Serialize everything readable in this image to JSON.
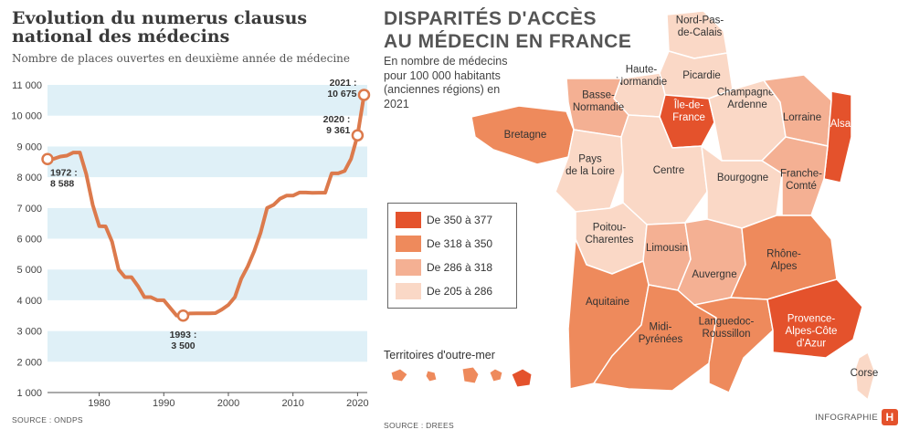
{
  "left": {
    "title": "Evolution du numerus clausus national des médecins",
    "subtitle": "Nombre de places ouvertes en deuxième année de médecine",
    "source": "SOURCE : ONDPS"
  },
  "chart_data": [
    {
      "type": "line",
      "title": "Evolution du numerus clausus national des médecins",
      "subtitle": "Nombre de places ouvertes en deuxième année de médecine",
      "xlabel": "",
      "ylabel": "",
      "xlim": [
        1972,
        2021
      ],
      "ylim": [
        1000,
        11000
      ],
      "x_ticks": [
        1980,
        1990,
        2000,
        2010,
        2020
      ],
      "y_ticks": [
        1000,
        2000,
        3000,
        4000,
        5000,
        6000,
        7000,
        8000,
        9000,
        10000,
        11000
      ],
      "y_tick_labels": [
        "1 000",
        "2 000",
        "3 000",
        "4 000",
        "5 000",
        "6 000",
        "7 000",
        "8 000",
        "9 000",
        "10 000",
        "11 000"
      ],
      "grid": "alternating horizontal bands",
      "line_color": "#dc7a4c",
      "series": [
        {
          "x": [
            1972,
            1973,
            1974,
            1975,
            1976,
            1977,
            1978,
            1979,
            1980,
            1981,
            1982,
            1983,
            1984,
            1985,
            1986,
            1987,
            1988,
            1989,
            1990,
            1991,
            1992,
            1993,
            1994,
            1995,
            1996,
            1997,
            1998,
            1999,
            2000,
            2001,
            2002,
            2003,
            2004,
            2005,
            2006,
            2007,
            2008,
            2009,
            2010,
            2011,
            2012,
            2013,
            2014,
            2015,
            2016,
            2017,
            2018,
            2019,
            2020,
            2021
          ],
          "values": [
            8588,
            8600,
            8671,
            8700,
            8800,
            8800,
            8100,
            7100,
            6409,
            6400,
            5900,
            5000,
            4750,
            4750,
            4460,
            4100,
            4100,
            4000,
            4000,
            3750,
            3500,
            3500,
            3570,
            3576,
            3576,
            3576,
            3583,
            3700,
            3850,
            4100,
            4700,
            5100,
            5600,
            6200,
            7000,
            7100,
            7300,
            7400,
            7400,
            7500,
            7500,
            7492,
            7497,
            7497,
            8124,
            8124,
            8205,
            8600,
            9361,
            10675
          ]
        }
      ],
      "annotations": [
        {
          "x": 1972,
          "y": 8588,
          "label": "1972 :",
          "label2": "8 588"
        },
        {
          "x": 1993,
          "y": 3500,
          "label": "1993 :",
          "label2": "3 500"
        },
        {
          "x": 2020,
          "y": 9361,
          "label": "2020 :",
          "label2": "9 361"
        },
        {
          "x": 2021,
          "y": 10675,
          "label": "2021 :",
          "label2": "10 675"
        }
      ]
    },
    {
      "type": "choropleth",
      "title": "DISPARITÉS D'ACCÈS AU MÉDECIN EN FRANCE",
      "subtitle": "En nombre de médecins pour 100 000 habitants (anciennes régions) en 2021",
      "legend": [
        {
          "label": "De 350 à 377",
          "color": "#e4522c"
        },
        {
          "label": "De 318 à 350",
          "color": "#ee8a5c"
        },
        {
          "label": "De 286 à 318",
          "color": "#f4b093"
        },
        {
          "label": "De 205 à 286",
          "color": "#fad8c6"
        }
      ],
      "regions": [
        {
          "id": "npdc",
          "name": "Nord-Pas-de-Calais",
          "lines": [
            "Nord-Pas-",
            "de-Calais"
          ],
          "class": 3
        },
        {
          "id": "picardie",
          "name": "Picardie",
          "lines": [
            "Picardie"
          ],
          "class": 3
        },
        {
          "id": "hn",
          "name": "Haute-Normandie",
          "lines": [
            "Haute-",
            "Normandie"
          ],
          "class": 3
        },
        {
          "id": "bn",
          "name": "Basse-Normandie",
          "lines": [
            "Basse-",
            "Normandie"
          ],
          "class": 2
        },
        {
          "id": "idf",
          "name": "Île-de-France",
          "lines": [
            "Île-de-",
            "France"
          ],
          "class": 0
        },
        {
          "id": "ca",
          "name": "Champagne-Ardenne",
          "lines": [
            "Champagne-",
            "Ardenne"
          ],
          "class": 3
        },
        {
          "id": "lorraine",
          "name": "Lorraine",
          "lines": [
            "Lorraine"
          ],
          "class": 2
        },
        {
          "id": "alsace",
          "name": "Alsace",
          "lines": [
            "Alsace"
          ],
          "class": 0
        },
        {
          "id": "bretagne",
          "name": "Bretagne",
          "lines": [
            "Bretagne"
          ],
          "class": 1
        },
        {
          "id": "pdl",
          "name": "Pays de la Loire",
          "lines": [
            "Pays",
            "de la Loire"
          ],
          "class": 3
        },
        {
          "id": "centre",
          "name": "Centre",
          "lines": [
            "Centre"
          ],
          "class": 3
        },
        {
          "id": "bourgogne",
          "name": "Bourgogne",
          "lines": [
            "Bourgogne"
          ],
          "class": 3
        },
        {
          "id": "fc",
          "name": "Franche-Comté",
          "lines": [
            "Franche-",
            "Comté"
          ],
          "class": 2
        },
        {
          "id": "pc",
          "name": "Poitou-Charentes",
          "lines": [
            "Poitou-",
            "Charentes"
          ],
          "class": 3
        },
        {
          "id": "limousin",
          "name": "Limousin",
          "lines": [
            "Limousin"
          ],
          "class": 2
        },
        {
          "id": "auvergne",
          "name": "Auvergne",
          "lines": [
            "Auvergne"
          ],
          "class": 2
        },
        {
          "id": "ra",
          "name": "Rhône-Alpes",
          "lines": [
            "Rhône-",
            "Alpes"
          ],
          "class": 1
        },
        {
          "id": "aquitaine",
          "name": "Aquitaine",
          "lines": [
            "Aquitaine"
          ],
          "class": 1
        },
        {
          "id": "mp",
          "name": "Midi-Pyrénées",
          "lines": [
            "Midi-",
            "Pyrénées"
          ],
          "class": 1
        },
        {
          "id": "lr",
          "name": "Languedoc-Roussillon",
          "lines": [
            "Languedoc-",
            "Roussillon"
          ],
          "class": 1
        },
        {
          "id": "paca",
          "name": "Provence-Alpes-Côte d'Azur",
          "lines": [
            "Provence-",
            "Alpes-Côte",
            "d'Azur"
          ],
          "class": 0
        },
        {
          "id": "corse",
          "name": "Corse",
          "lines": [
            "Corse"
          ],
          "class": 3
        }
      ]
    }
  ],
  "right": {
    "title_line1": "DISPARITÉS D'ACCÈS",
    "title_line2": "AU MÉDECIN EN FRANCE",
    "subtitle": "En nombre de médecins pour 100 000 habitants (anciennes régions) en 2021",
    "overseas_label": "Territoires d'outre-mer",
    "source": "SOURCE : DREES",
    "credit": "INFOGRAPHIE",
    "logo_letter": "H",
    "logo_color": "#e4522c"
  }
}
